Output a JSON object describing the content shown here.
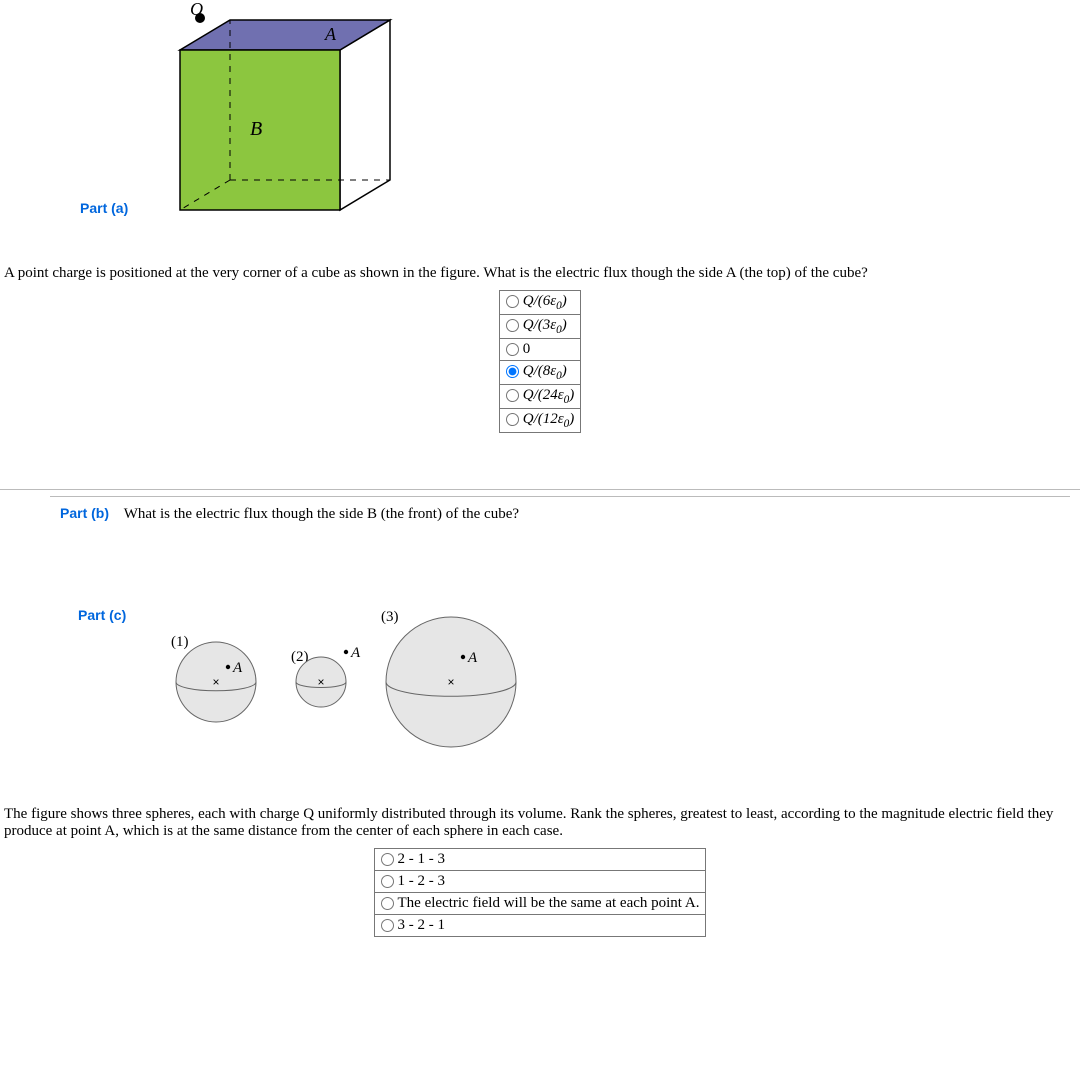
{
  "cube": {
    "Q_label": "Q",
    "A_label": "A",
    "B_label": "B",
    "top_fill": "#7070b0",
    "front_fill": "#8cc63f",
    "right_fill": "#ffffff",
    "edge_color": "#000000"
  },
  "part_a": {
    "label": "Part (a)",
    "question": "A point charge is positioned at the very corner of a cube as shown in the figure. What is the electric flux though the side A (the top) of the cube?",
    "options": [
      {
        "html": "Q/(6ε<sub>0</sub>)",
        "checked": false
      },
      {
        "html": "Q/(3ε<sub>0</sub>)",
        "checked": false
      },
      {
        "html": "0",
        "checked": false
      },
      {
        "html": "Q/(8ε<sub>0</sub>)",
        "checked": true
      },
      {
        "html": "Q/(24ε<sub>0</sub>)",
        "checked": false
      },
      {
        "html": "Q/(12ε<sub>0</sub>)",
        "checked": false
      }
    ]
  },
  "part_b": {
    "label": "Part (b)",
    "question": "What is the electric flux though the side B (the front) of the cube?"
  },
  "part_c": {
    "label": "Part (c)",
    "sphere_fill": "#e6e6e6",
    "sphere_edge": "#666666",
    "spheres": [
      {
        "num": "(1)",
        "r": 40,
        "A_dx": 12,
        "A_dy": -15
      },
      {
        "num": "(2)",
        "r": 25,
        "A_dx": 25,
        "A_dy": -30
      },
      {
        "num": "(3)",
        "r": 65,
        "A_dx": 12,
        "A_dy": -25
      }
    ],
    "A_label": "A",
    "question": "The figure shows three spheres, each with charge Q uniformly distributed through its volume. Rank the spheres, greatest to least, according to the magnitude electric field they produce at point A, which is at the same distance from the center of each sphere in each case.",
    "options": [
      {
        "html": "2 - 1 - 3",
        "checked": false
      },
      {
        "html": "1 - 2 - 3",
        "checked": false
      },
      {
        "html": "The electric field will be the same at each point A.",
        "checked": false
      },
      {
        "html": "3 - 2 - 1",
        "checked": false
      }
    ]
  }
}
